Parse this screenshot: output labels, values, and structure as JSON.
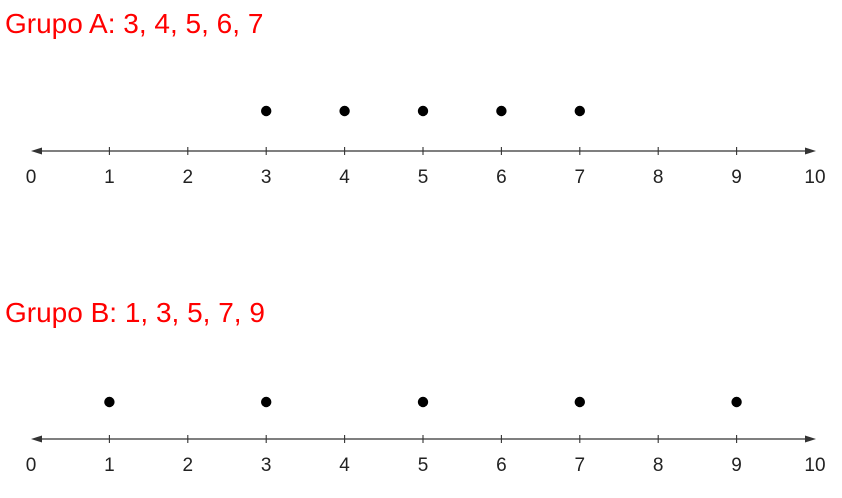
{
  "chart_data": [
    {
      "type": "scatter",
      "title": "Grupo A: 3, 4, 5, 6, 7",
      "x": [
        3,
        4,
        5,
        6,
        7
      ],
      "xlim": [
        0,
        10
      ],
      "ticks": [
        0,
        1,
        2,
        3,
        4,
        5,
        6,
        7,
        8,
        9,
        10
      ]
    },
    {
      "type": "scatter",
      "title": "Grupo B: 1, 3, 5, 7, 9",
      "x": [
        1,
        3,
        5,
        7,
        9
      ],
      "xlim": [
        0,
        10
      ],
      "ticks": [
        0,
        1,
        2,
        3,
        4,
        5,
        6,
        7,
        8,
        9,
        10
      ]
    }
  ],
  "colors": {
    "title": "#ff0000",
    "dot": "#000000",
    "axis": "#333333"
  }
}
